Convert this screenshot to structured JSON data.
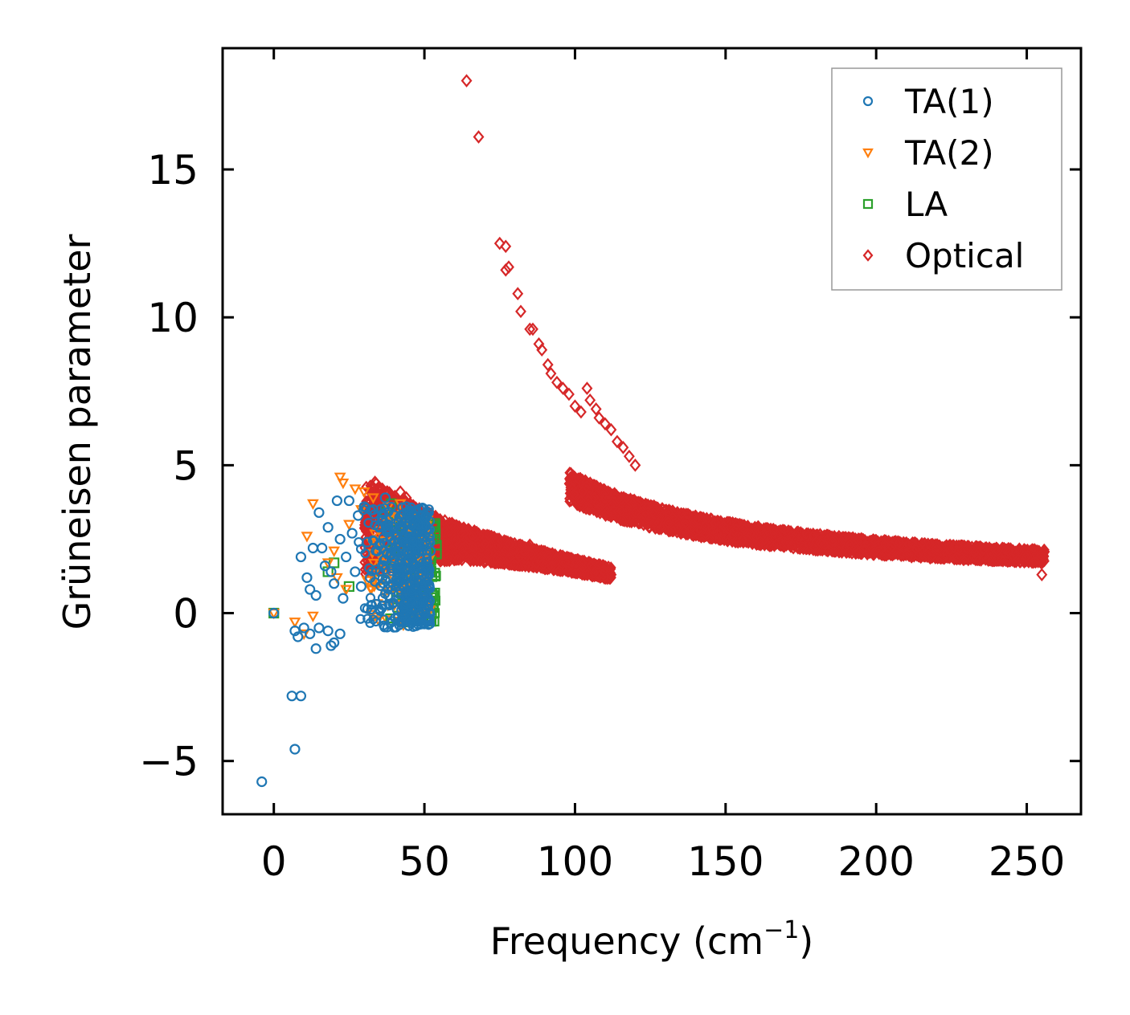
{
  "chart_data": {
    "type": "scatter",
    "title": "",
    "xlabel": "Frequency (cm",
    "xlabel_sup": "−1",
    "xlabel_tail": ")",
    "ylabel": "Grüneisen parameter",
    "xlim": [
      -17,
      268
    ],
    "ylim": [
      -6.8,
      19.1
    ],
    "xticks": [
      0,
      50,
      100,
      150,
      200,
      250
    ],
    "xtick_labels": [
      "0",
      "50",
      "100",
      "150",
      "200",
      "250"
    ],
    "yticks": [
      -5,
      0,
      5,
      10,
      15
    ],
    "ytick_labels": [
      "−5",
      "0",
      "5",
      "10",
      "15"
    ],
    "grid": false,
    "legend_position": "top-right",
    "series": [
      {
        "name": "TA(1)",
        "color": "#1f77b4",
        "marker": "circle",
        "points": [
          [
            -4,
            -5.7
          ],
          [
            6,
            -2.8
          ],
          [
            9,
            -2.8
          ],
          [
            7,
            -4.6
          ],
          [
            7,
            -0.6
          ],
          [
            8,
            -0.8
          ],
          [
            10,
            -0.5
          ],
          [
            12,
            -0.7
          ],
          [
            14,
            -1.2
          ],
          [
            15,
            -0.5
          ],
          [
            18,
            -0.6
          ],
          [
            19,
            -1.1
          ],
          [
            20,
            -1.0
          ],
          [
            22,
            -0.7
          ],
          [
            9,
            1.9
          ],
          [
            11,
            1.2
          ],
          [
            12,
            0.8
          ],
          [
            13,
            2.2
          ],
          [
            14,
            0.6
          ],
          [
            15,
            3.4
          ],
          [
            16,
            2.2
          ],
          [
            17,
            1.6
          ],
          [
            18,
            2.9
          ],
          [
            19,
            1.4
          ],
          [
            20,
            1.0
          ],
          [
            21,
            3.8
          ],
          [
            22,
            2.5
          ],
          [
            23,
            0.5
          ],
          [
            24,
            1.9
          ],
          [
            25,
            3.8
          ],
          [
            26,
            2.7
          ],
          [
            27,
            1.4
          ],
          [
            28,
            3.3
          ],
          [
            29,
            0.9
          ],
          [
            30,
            3.6
          ],
          [
            31,
            2.4
          ],
          [
            32,
            1.2
          ],
          [
            33,
            3.5
          ],
          [
            34,
            0.3
          ],
          [
            35,
            2.9
          ],
          [
            36,
            1.6
          ],
          [
            37,
            3.9
          ],
          [
            38,
            0.6
          ],
          [
            39,
            2.2
          ],
          [
            40,
            3.3
          ],
          [
            41,
            1.0
          ],
          [
            42,
            2.8
          ],
          [
            43,
            0.2
          ],
          [
            44,
            3.6
          ],
          [
            45,
            1.8
          ],
          [
            46,
            2.4
          ],
          [
            47,
            0.8
          ],
          [
            48,
            3.0
          ],
          [
            49,
            1.4
          ],
          [
            50,
            2.6
          ],
          [
            51,
            0.4
          ],
          [
            52,
            2.1
          ],
          [
            0,
            0.0
          ]
        ],
        "cloud": {
          "x": [
            28,
            52
          ],
          "y": [
            -0.5,
            3.6
          ],
          "count": 420
        }
      },
      {
        "name": "TA(2)",
        "color": "#ff7f0e",
        "marker": "triangle-down",
        "points": [
          [
            0,
            0.0
          ],
          [
            7,
            -0.3
          ],
          [
            10,
            -0.7
          ],
          [
            13,
            -0.1
          ],
          [
            13,
            3.7
          ],
          [
            11,
            2.6
          ],
          [
            18,
            1.7
          ],
          [
            21,
            1.2
          ],
          [
            22,
            4.6
          ],
          [
            23,
            4.4
          ],
          [
            25,
            3.0
          ],
          [
            27,
            4.2
          ],
          [
            29,
            3.5
          ],
          [
            30,
            4.1
          ],
          [
            31,
            1.1
          ],
          [
            33,
            3.9
          ],
          [
            35,
            2.0
          ],
          [
            36,
            3.1
          ],
          [
            38,
            3.6
          ],
          [
            40,
            2.5
          ],
          [
            42,
            3.7
          ],
          [
            44,
            1.8
          ],
          [
            46,
            3.3
          ],
          [
            48,
            2.2
          ],
          [
            42,
            -0.3
          ],
          [
            43,
            -0.4
          ],
          [
            45,
            -0.2
          ],
          [
            24,
            0.8
          ],
          [
            20,
            2.1
          ]
        ],
        "cloud": {
          "x": [
            30,
            52
          ],
          "y": [
            -0.3,
            3.4
          ],
          "count": 180
        }
      },
      {
        "name": "LA",
        "color": "#2ca02c",
        "marker": "square",
        "points": [
          [
            0,
            0.0
          ],
          [
            18,
            1.4
          ],
          [
            20,
            1.7
          ],
          [
            25,
            0.9
          ],
          [
            37,
            3.4
          ],
          [
            39,
            3.7
          ],
          [
            41,
            3.2
          ],
          [
            43,
            2.8
          ],
          [
            45,
            2.5
          ],
          [
            47,
            1.9
          ],
          [
            49,
            1.2
          ],
          [
            51,
            0.6
          ],
          [
            53,
            0.6
          ],
          [
            53,
            0.3
          ],
          [
            53,
            2.9
          ],
          [
            54,
            2.3
          ],
          [
            54,
            2.0
          ],
          [
            52,
            2.7
          ],
          [
            48,
            -0.1
          ],
          [
            45,
            -0.2
          ],
          [
            43,
            -0.3
          ]
        ],
        "cloud": {
          "x": [
            34,
            54
          ],
          "y": [
            -0.3,
            3.2
          ],
          "count": 120
        }
      },
      {
        "name": "Optical",
        "color": "#d62728",
        "marker": "diamond",
        "points": [
          [
            64,
            18.0
          ],
          [
            68,
            16.1
          ],
          [
            75,
            12.5
          ],
          [
            77,
            12.4
          ],
          [
            77,
            11.6
          ],
          [
            78,
            11.7
          ],
          [
            81,
            10.8
          ],
          [
            82,
            10.2
          ],
          [
            85,
            9.6
          ],
          [
            86,
            9.6
          ],
          [
            88,
            9.1
          ],
          [
            89,
            8.9
          ],
          [
            91,
            8.4
          ],
          [
            92,
            8.1
          ],
          [
            94,
            7.8
          ],
          [
            96,
            7.6
          ],
          [
            98,
            7.4
          ],
          [
            100,
            7.0
          ],
          [
            102,
            6.8
          ],
          [
            104,
            7.6
          ],
          [
            105,
            7.2
          ],
          [
            107,
            6.9
          ],
          [
            108,
            6.6
          ],
          [
            110,
            6.4
          ],
          [
            112,
            6.2
          ],
          [
            114,
            5.8
          ],
          [
            116,
            5.6
          ],
          [
            118,
            5.3
          ],
          [
            120,
            5.0
          ],
          [
            85,
            2.3
          ],
          [
            42,
            4.1
          ],
          [
            44,
            3.9
          ],
          [
            46,
            3.6
          ],
          [
            60,
            2.9
          ],
          [
            65,
            2.6
          ],
          [
            110,
            1.4
          ],
          [
            112,
            1.3
          ],
          [
            255,
            1.3
          ]
        ],
        "bands": [
          {
            "x": [
              30,
              112
            ],
            "center_exp": [
              3.0,
              0.9,
              0.06
            ],
            "half_width": [
              1.6,
              0.15
            ],
            "count": 2200
          },
          {
            "x": [
              98,
              256
            ],
            "center_inv": [
              1.1,
              420
            ],
            "half_width_frac": 0.12,
            "count": 3200
          }
        ]
      }
    ]
  }
}
